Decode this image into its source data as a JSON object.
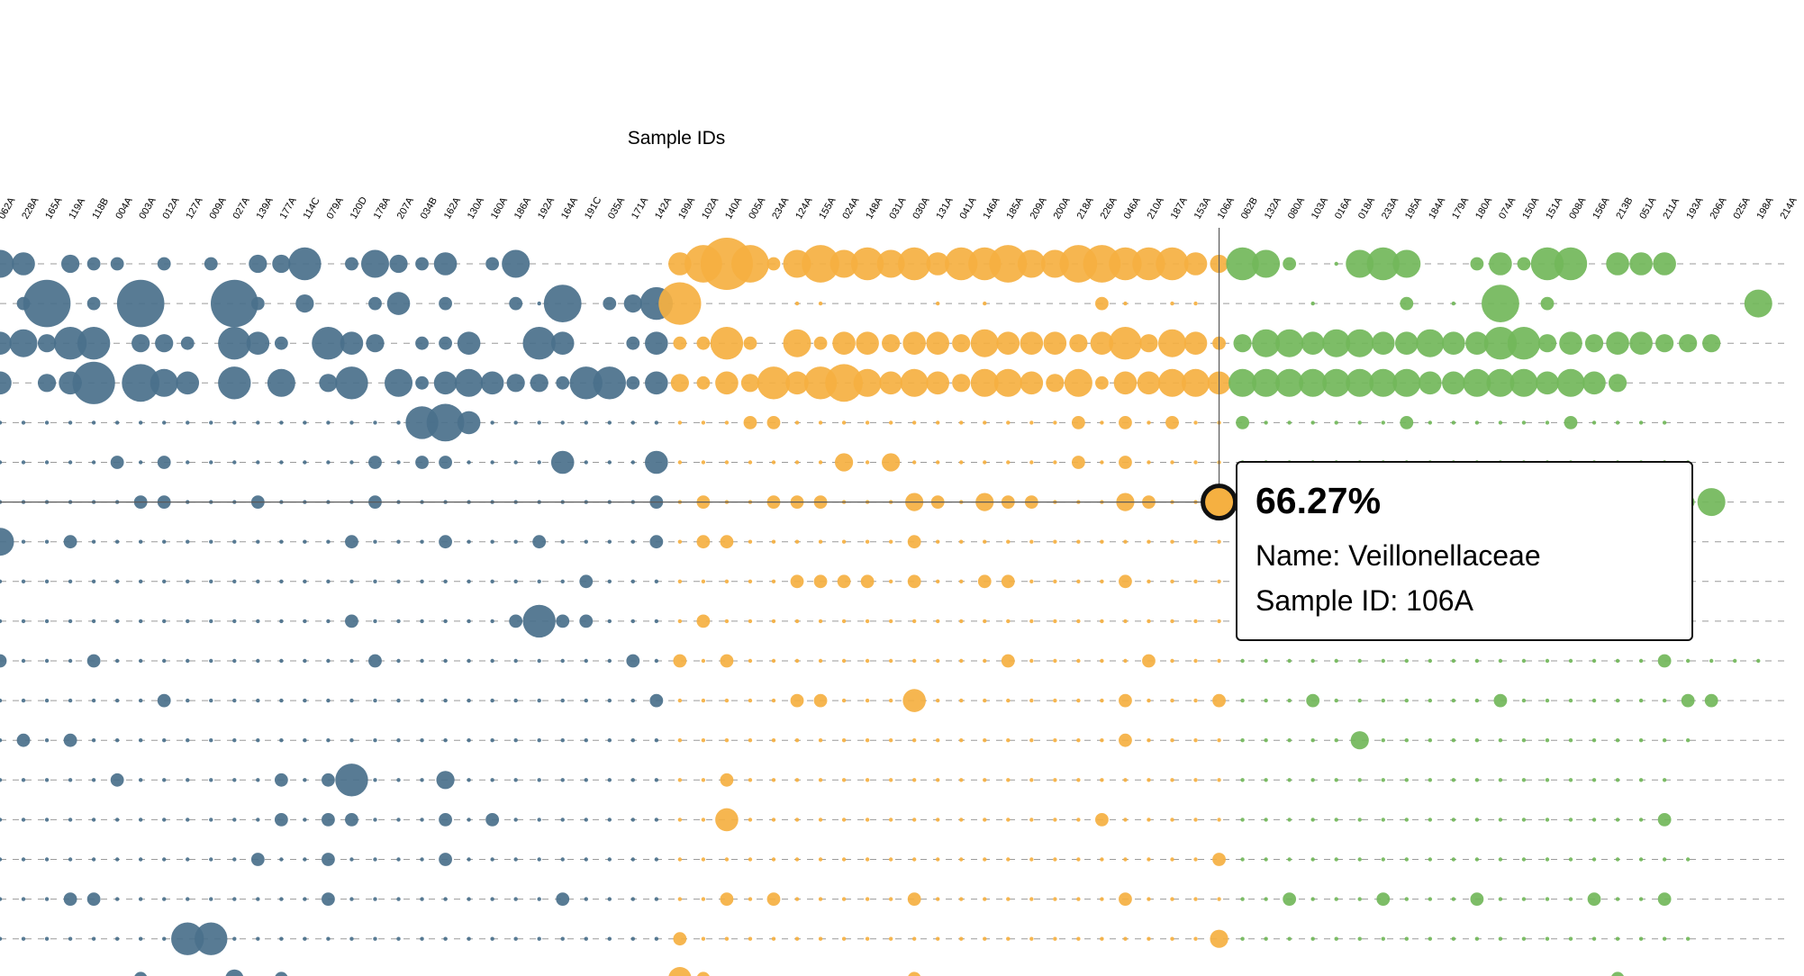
{
  "chart_data": {
    "type": "scatter",
    "subtype": "bubble-matrix",
    "xlabel": "Sample IDs",
    "x_axis_position": "top",
    "grid": "dashed horizontal row lines",
    "groups": [
      {
        "color": "#4a708b",
        "categories": [
          "062A",
          "228A",
          "165A",
          "119A",
          "118B",
          "004A",
          "003A",
          "012A",
          "127A",
          "009A",
          "027A",
          "139A",
          "177A",
          "114C",
          "079A",
          "120D",
          "178A",
          "207A",
          "034B",
          "162A",
          "130A",
          "160A",
          "186A",
          "192A",
          "164A",
          "191C",
          "035A",
          "171A",
          "142A"
        ]
      },
      {
        "color": "#f5b041",
        "categories": [
          "199A",
          "102A",
          "140A",
          "005A",
          "234A",
          "124A",
          "155A",
          "024A",
          "148A",
          "031A",
          "030A",
          "131A",
          "041A",
          "146A",
          "185A",
          "209A",
          "200A",
          "218A",
          "226A",
          "046A",
          "210A",
          "187A",
          "153A",
          "106A"
        ]
      },
      {
        "color": "#72b75a",
        "categories": [
          "062B",
          "132A",
          "080A",
          "103A",
          "016A",
          "018A",
          "233A",
          "195A",
          "184A",
          "179A",
          "180A",
          "074A",
          "150A",
          "151A",
          "008A",
          "156A",
          "213B",
          "051A",
          "211A",
          "193A",
          "206A",
          "025A",
          "198A"
        ]
      },
      {
        "color": "#2a9a95",
        "categories": [
          "214A"
        ]
      }
    ],
    "row_count": 19,
    "values_note_rows": [
      [
        5,
        4,
        0,
        3,
        2,
        2,
        0,
        2,
        0,
        2,
        0,
        3,
        3,
        6,
        0,
        2,
        5,
        3,
        2,
        4,
        0,
        2,
        5,
        0,
        0,
        0,
        0,
        0,
        0,
        4,
        7,
        10,
        7,
        2,
        5,
        7,
        5,
        6,
        5,
        6,
        4,
        6,
        6,
        7,
        5,
        5,
        7,
        7,
        6,
        6,
        6,
        4,
        3,
        6,
        5,
        2,
        0,
        1,
        5,
        6,
        5,
        0,
        0,
        2,
        4,
        2,
        6,
        6,
        0,
        4,
        4,
        4
      ],
      [
        0,
        2,
        9,
        0,
        2,
        0,
        9,
        0,
        0,
        0,
        9,
        2,
        0,
        3,
        0,
        0,
        2,
        4,
        0,
        2,
        0,
        0,
        2,
        1,
        7,
        0,
        2,
        3,
        6,
        8,
        0,
        0,
        0,
        0,
        1,
        1,
        0,
        0,
        0,
        0,
        1,
        0,
        1,
        0,
        0,
        0,
        0,
        2,
        1,
        0,
        1,
        1,
        0,
        0,
        0,
        0,
        1,
        0,
        0,
        0,
        2,
        0,
        1,
        0,
        7,
        0,
        2,
        0,
        0,
        0,
        0,
        0,
        0,
        0,
        0,
        5
      ],
      [
        4,
        5,
        3,
        6,
        6,
        0,
        3,
        3,
        2,
        0,
        6,
        4,
        2,
        0,
        6,
        4,
        3,
        0,
        2,
        2,
        4,
        0,
        0,
        6,
        4,
        0,
        0,
        2,
        4,
        2,
        2,
        6,
        2,
        0,
        5,
        2,
        4,
        4,
        3,
        4,
        4,
        3,
        5,
        4,
        4,
        4,
        3,
        4,
        6,
        3,
        5,
        4,
        2,
        3,
        5,
        5,
        4,
        5,
        5,
        4,
        4,
        5,
        4,
        4,
        6,
        6,
        3,
        4,
        3,
        4,
        4,
        3,
        3,
        3
      ],
      [
        4,
        0,
        3,
        4,
        8,
        0,
        7,
        5,
        4,
        0,
        6,
        0,
        5,
        0,
        3,
        6,
        0,
        5,
        2,
        4,
        5,
        4,
        3,
        3,
        2,
        6,
        6,
        2,
        4,
        3,
        2,
        4,
        3,
        6,
        4,
        6,
        7,
        5,
        4,
        5,
        4,
        3,
        5,
        5,
        4,
        3,
        5,
        2,
        4,
        4,
        5,
        5,
        4,
        5,
        5,
        5,
        5,
        5,
        5,
        5,
        5,
        4,
        4,
        5,
        5,
        5,
        4,
        5,
        4,
        3
      ],
      [
        1,
        1,
        1,
        1,
        1,
        1,
        1,
        1,
        1,
        1,
        1,
        1,
        1,
        1,
        1,
        1,
        1,
        1,
        6,
        7,
        4,
        1,
        1,
        1,
        1,
        1,
        1,
        1,
        1,
        1,
        1,
        1,
        2,
        2,
        1,
        1,
        1,
        1,
        1,
        1,
        1,
        1,
        1,
        1,
        1,
        1,
        2,
        1,
        2,
        1,
        2,
        1,
        1,
        2,
        1,
        1,
        1,
        1,
        1,
        1,
        2,
        1,
        1,
        1,
        1,
        1,
        1,
        2,
        1,
        1,
        1,
        1
      ],
      [
        1,
        1,
        1,
        1,
        1,
        2,
        1,
        2,
        1,
        1,
        1,
        1,
        1,
        1,
        1,
        1,
        2,
        1,
        2,
        2,
        1,
        1,
        1,
        1,
        4,
        1,
        1,
        1,
        4,
        1,
        1,
        1,
        1,
        1,
        1,
        1,
        3,
        1,
        3,
        1,
        1,
        1,
        1,
        1,
        1,
        1,
        2,
        1,
        2,
        1,
        1,
        1,
        1,
        1,
        1,
        1,
        1,
        1,
        1,
        1,
        1,
        1,
        1,
        1,
        1,
        1,
        1,
        1,
        1,
        1,
        1,
        1,
        1
      ],
      [
        1,
        1,
        1,
        1,
        1,
        1,
        2,
        2,
        1,
        1,
        1,
        2,
        1,
        1,
        1,
        1,
        2,
        1,
        1,
        1,
        1,
        1,
        1,
        1,
        1,
        1,
        1,
        1,
        2,
        1,
        2,
        1,
        1,
        2,
        2,
        2,
        1,
        1,
        1,
        3,
        2,
        1,
        3,
        2,
        2,
        1,
        1,
        1,
        3,
        2,
        1,
        1,
        1,
        1,
        1,
        1,
        1,
        1,
        1,
        1,
        1,
        1,
        1,
        1,
        1,
        2,
        2,
        1,
        1,
        1,
        1,
        2,
        2,
        5
      ],
      [
        5,
        1,
        1,
        2,
        1,
        1,
        1,
        1,
        1,
        1,
        1,
        1,
        1,
        1,
        1,
        2,
        1,
        1,
        1,
        2,
        1,
        1,
        1,
        2,
        1,
        1,
        1,
        1,
        2,
        1,
        2,
        2,
        1,
        1,
        1,
        1,
        1,
        1,
        1,
        2,
        1,
        1,
        1,
        1,
        1,
        1,
        1,
        1,
        1,
        1,
        1,
        1,
        1,
        1,
        1,
        1,
        1,
        1,
        1,
        1,
        1,
        1,
        1,
        1,
        1,
        1,
        1,
        1,
        1,
        1,
        2
      ],
      [
        1,
        1,
        1,
        1,
        1,
        1,
        1,
        1,
        1,
        1,
        1,
        1,
        1,
        1,
        1,
        1,
        1,
        1,
        1,
        1,
        1,
        1,
        1,
        1,
        1,
        2,
        1,
        1,
        1,
        1,
        1,
        1,
        1,
        1,
        2,
        2,
        2,
        2,
        1,
        2,
        1,
        1,
        2,
        2,
        1,
        1,
        1,
        1,
        2,
        1,
        1,
        1,
        1,
        1,
        1,
        1,
        1,
        1,
        1,
        1,
        1,
        1,
        1,
        1,
        1,
        1,
        1,
        1,
        1,
        1,
        2
      ],
      [
        1,
        1,
        1,
        1,
        1,
        1,
        1,
        1,
        1,
        1,
        1,
        1,
        1,
        1,
        1,
        2,
        1,
        1,
        1,
        1,
        1,
        1,
        2,
        6,
        2,
        2,
        1,
        1,
        1,
        1,
        2,
        1,
        1,
        1,
        1,
        1,
        1,
        1,
        1,
        1,
        1,
        1,
        1,
        1,
        1,
        1,
        1,
        1,
        1,
        1,
        1,
        1,
        1,
        1,
        1,
        1,
        1,
        1,
        1,
        1,
        1,
        1,
        1,
        1,
        1,
        1,
        1,
        1,
        1,
        1,
        1
      ],
      [
        2,
        1,
        1,
        1,
        2,
        1,
        1,
        1,
        1,
        1,
        1,
        1,
        1,
        1,
        1,
        1,
        2,
        1,
        1,
        1,
        1,
        1,
        1,
        1,
        1,
        1,
        1,
        2,
        1,
        2,
        1,
        2,
        1,
        1,
        1,
        1,
        1,
        1,
        1,
        1,
        1,
        1,
        1,
        2,
        1,
        1,
        1,
        1,
        1,
        2,
        1,
        1,
        1,
        1,
        1,
        1,
        1,
        1,
        1,
        1,
        1,
        1,
        1,
        1,
        1,
        1,
        1,
        1,
        1,
        1,
        1,
        2,
        1,
        1,
        1,
        1
      ],
      [
        1,
        1,
        1,
        1,
        1,
        1,
        1,
        2,
        1,
        1,
        1,
        1,
        1,
        1,
        1,
        1,
        1,
        1,
        1,
        1,
        1,
        1,
        1,
        1,
        1,
        1,
        1,
        1,
        2,
        1,
        1,
        1,
        1,
        1,
        2,
        2,
        1,
        1,
        1,
        4,
        1,
        1,
        1,
        1,
        1,
        1,
        1,
        1,
        2,
        1,
        1,
        1,
        2,
        1,
        1,
        1,
        2,
        1,
        1,
        1,
        1,
        1,
        1,
        1,
        2,
        1,
        1,
        1,
        1,
        1,
        1,
        1,
        2,
        2
      ],
      [
        1,
        2,
        1,
        2,
        1,
        1,
        1,
        1,
        1,
        1,
        1,
        1,
        1,
        1,
        1,
        1,
        1,
        1,
        1,
        1,
        1,
        1,
        1,
        1,
        1,
        1,
        1,
        1,
        1,
        1,
        1,
        1,
        1,
        1,
        1,
        1,
        1,
        1,
        1,
        1,
        1,
        1,
        1,
        1,
        1,
        1,
        1,
        1,
        2,
        1,
        1,
        1,
        1,
        1,
        1,
        1,
        1,
        1,
        3,
        1,
        1,
        1,
        1,
        1,
        1,
        1,
        1,
        1,
        1,
        1,
        1,
        1,
        1
      ],
      [
        1,
        1,
        1,
        1,
        1,
        2,
        1,
        1,
        1,
        1,
        1,
        1,
        2,
        1,
        2,
        6,
        1,
        1,
        1,
        3,
        1,
        1,
        1,
        1,
        1,
        1,
        1,
        1,
        1,
        1,
        1,
        2,
        1,
        1,
        1,
        1,
        1,
        1,
        1,
        1,
        1,
        1,
        1,
        1,
        1,
        1,
        1,
        1,
        1,
        1,
        1,
        1,
        1,
        1,
        1,
        1,
        1,
        1,
        1,
        1,
        1,
        1,
        1,
        1,
        1,
        1,
        1,
        1,
        1,
        1,
        1,
        1
      ],
      [
        1,
        1,
        1,
        1,
        1,
        1,
        1,
        1,
        1,
        1,
        1,
        1,
        2,
        1,
        2,
        2,
        1,
        1,
        1,
        2,
        1,
        2,
        1,
        1,
        1,
        1,
        1,
        1,
        1,
        1,
        1,
        4,
        1,
        1,
        1,
        1,
        1,
        1,
        1,
        1,
        1,
        1,
        1,
        1,
        1,
        1,
        1,
        2,
        1,
        1,
        1,
        1,
        1,
        1,
        1,
        1,
        1,
        1,
        1,
        1,
        1,
        1,
        1,
        1,
        1,
        1,
        1,
        1,
        1,
        1,
        1,
        2
      ],
      [
        1,
        1,
        1,
        1,
        1,
        1,
        1,
        1,
        1,
        1,
        1,
        2,
        1,
        1,
        2,
        1,
        1,
        1,
        1,
        2,
        1,
        1,
        1,
        1,
        1,
        1,
        1,
        1,
        1,
        1,
        1,
        1,
        1,
        1,
        1,
        1,
        1,
        1,
        1,
        1,
        1,
        1,
        1,
        1,
        1,
        1,
        1,
        1,
        1,
        1,
        1,
        1,
        2,
        1,
        1,
        1,
        1,
        1,
        1,
        1,
        1,
        1,
        1,
        1,
        1,
        1,
        1,
        1,
        1,
        1,
        1,
        1,
        1
      ],
      [
        1,
        1,
        1,
        2,
        2,
        1,
        1,
        1,
        1,
        1,
        1,
        1,
        1,
        1,
        2,
        1,
        1,
        1,
        1,
        1,
        1,
        1,
        1,
        1,
        2,
        1,
        1,
        1,
        1,
        1,
        1,
        2,
        1,
        2,
        1,
        1,
        1,
        1,
        1,
        2,
        1,
        1,
        1,
        1,
        1,
        1,
        1,
        1,
        2,
        1,
        1,
        1,
        1,
        1,
        1,
        2,
        1,
        1,
        1,
        2,
        1,
        1,
        1,
        2,
        1,
        1,
        1,
        1,
        2,
        1,
        1,
        2
      ],
      [
        1,
        1,
        1,
        1,
        1,
        1,
        1,
        1,
        6,
        6,
        1,
        1,
        1,
        1,
        1,
        1,
        1,
        1,
        1,
        1,
        1,
        1,
        1,
        1,
        1,
        1,
        1,
        1,
        1,
        2,
        1,
        1,
        1,
        1,
        1,
        1,
        1,
        1,
        1,
        1,
        1,
        1,
        1,
        1,
        1,
        1,
        1,
        1,
        1,
        1,
        1,
        1,
        3,
        1,
        1,
        1,
        1,
        1,
        1,
        1,
        1,
        1,
        1,
        1,
        1,
        1,
        1,
        1,
        1,
        1,
        1,
        1,
        1
      ],
      [
        1,
        1,
        1,
        1,
        1,
        1,
        2,
        1,
        1,
        1,
        3,
        1,
        2,
        1,
        1,
        1,
        1,
        1,
        1,
        1,
        1,
        1,
        1,
        1,
        1,
        1,
        1,
        1,
        1,
        4,
        2,
        1,
        1,
        1,
        1,
        1,
        1,
        1,
        1,
        2,
        1,
        1,
        1,
        1,
        1,
        1,
        1,
        1,
        1,
        1,
        1,
        1,
        1,
        1,
        1,
        1,
        1,
        1,
        1,
        1,
        1,
        1,
        1,
        1,
        1,
        1,
        1,
        1,
        1,
        2,
        1
      ]
    ]
  },
  "tooltip": {
    "value": "66.27%",
    "name_line": "Name: Veillonellaceae",
    "sample_line": "Sample ID: 106A"
  },
  "highlight": {
    "sample": "106A",
    "row": 6
  }
}
